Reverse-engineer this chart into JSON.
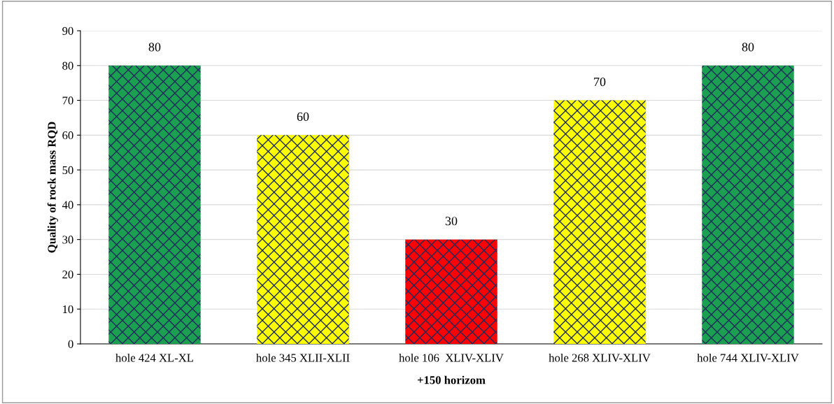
{
  "chart_data": {
    "type": "bar",
    "xlabel": "+150 horizom",
    "ylabel": "Quality of rock mass RQD",
    "categories": [
      "hole 424 XL-XL",
      "hole 345 XLII-XLII",
      "hole 106  XLIV-XLIV",
      "hole 268 XLIV-XLIV",
      "hole 744 XLIV-XLIV"
    ],
    "values": [
      80,
      60,
      30,
      70,
      80
    ],
    "colors": [
      "#1aa050",
      "#ffff00",
      "#ff0000",
      "#ffff00",
      "#1aa050"
    ],
    "ylim": [
      0,
      90
    ],
    "yticks": [
      0,
      10,
      20,
      30,
      40,
      50,
      60,
      70,
      80,
      90
    ],
    "grid": "y",
    "data_labels": true,
    "legend": false
  }
}
